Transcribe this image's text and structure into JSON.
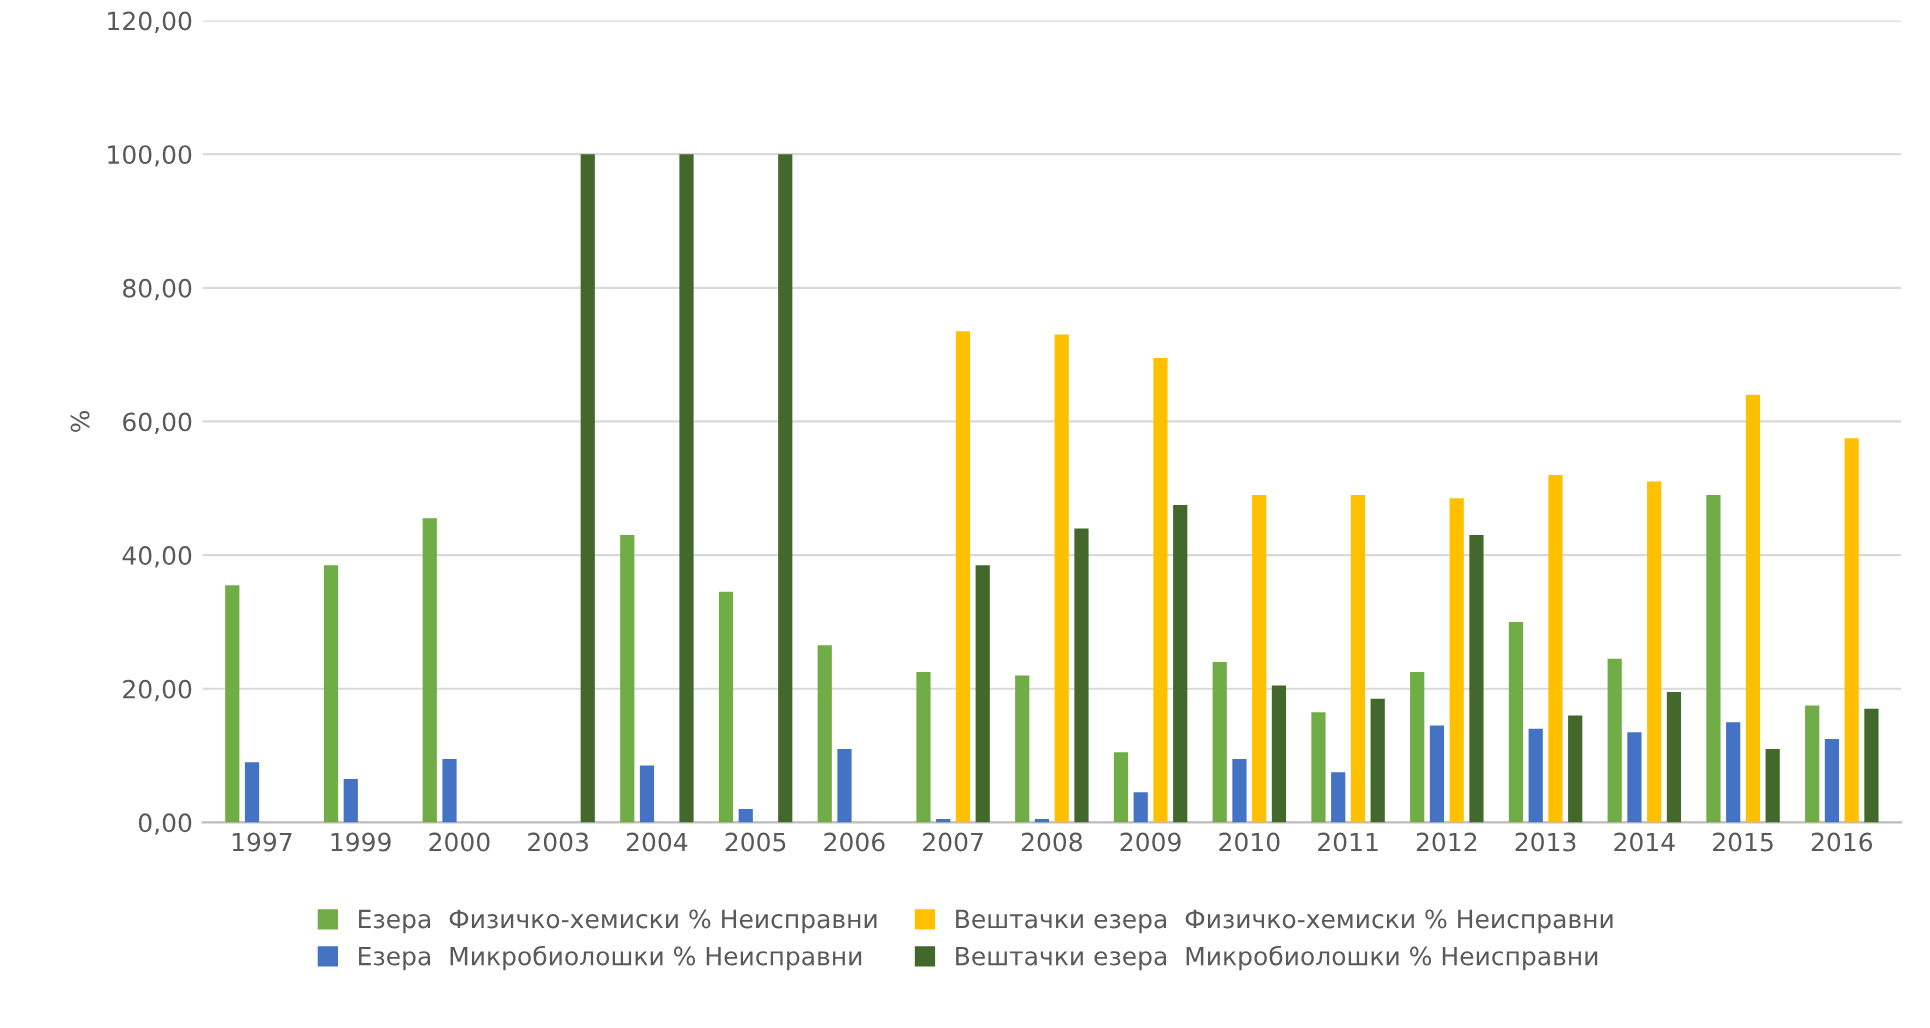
{
  "chart_data": {
    "type": "bar",
    "ylabel": "%",
    "categories": [
      "1997",
      "1999",
      "2000",
      "2003",
      "2004",
      "2005",
      "2006",
      "2007",
      "2008",
      "2009",
      "2010",
      "2011",
      "2012",
      "2013",
      "2014",
      "2015",
      "2016"
    ],
    "series": [
      {
        "name": "Езера  Физичко-хемиски % Неисправни",
        "color": "#70ad47",
        "values": [
          35.5,
          38.5,
          45.5,
          null,
          43,
          34.5,
          26.5,
          22.5,
          22,
          10.5,
          24,
          16.5,
          22.5,
          30,
          24.5,
          49,
          17.5
        ]
      },
      {
        "name": "Езера  Микробиолошки % Неисправни",
        "color": "#4472c4",
        "values": [
          9,
          6.5,
          9.5,
          null,
          8.5,
          2,
          11,
          0.5,
          0.5,
          4.5,
          9.5,
          7.5,
          14.5,
          14,
          13.5,
          15,
          12.5
        ]
      },
      {
        "name": "Вештачки езера  Физичко-хемиски % Неисправни",
        "color": "#ffc000",
        "values": [
          null,
          null,
          null,
          null,
          null,
          null,
          null,
          73.5,
          73,
          69.5,
          49,
          49,
          48.5,
          52,
          51,
          64,
          57.5
        ]
      },
      {
        "name": "Вештачки езера  Микробиолошки % Неисправни",
        "color": "#43682b",
        "values": [
          null,
          null,
          null,
          100,
          100,
          100,
          null,
          38.5,
          44,
          47.5,
          20.5,
          18.5,
          43,
          16,
          19.5,
          11,
          17
        ]
      }
    ],
    "ylim": [
      0,
      120
    ],
    "yticks": [
      {
        "value": 0,
        "label": "0,00"
      },
      {
        "value": 20,
        "label": "20,00"
      },
      {
        "value": 40,
        "label": "40,00"
      },
      {
        "value": 60,
        "label": "60,00"
      },
      {
        "value": 80,
        "label": "80,00"
      },
      {
        "value": 100,
        "label": "100,00"
      },
      {
        "value": 120,
        "label": "120,00"
      }
    ],
    "grid": "y",
    "legend": "bottom"
  }
}
